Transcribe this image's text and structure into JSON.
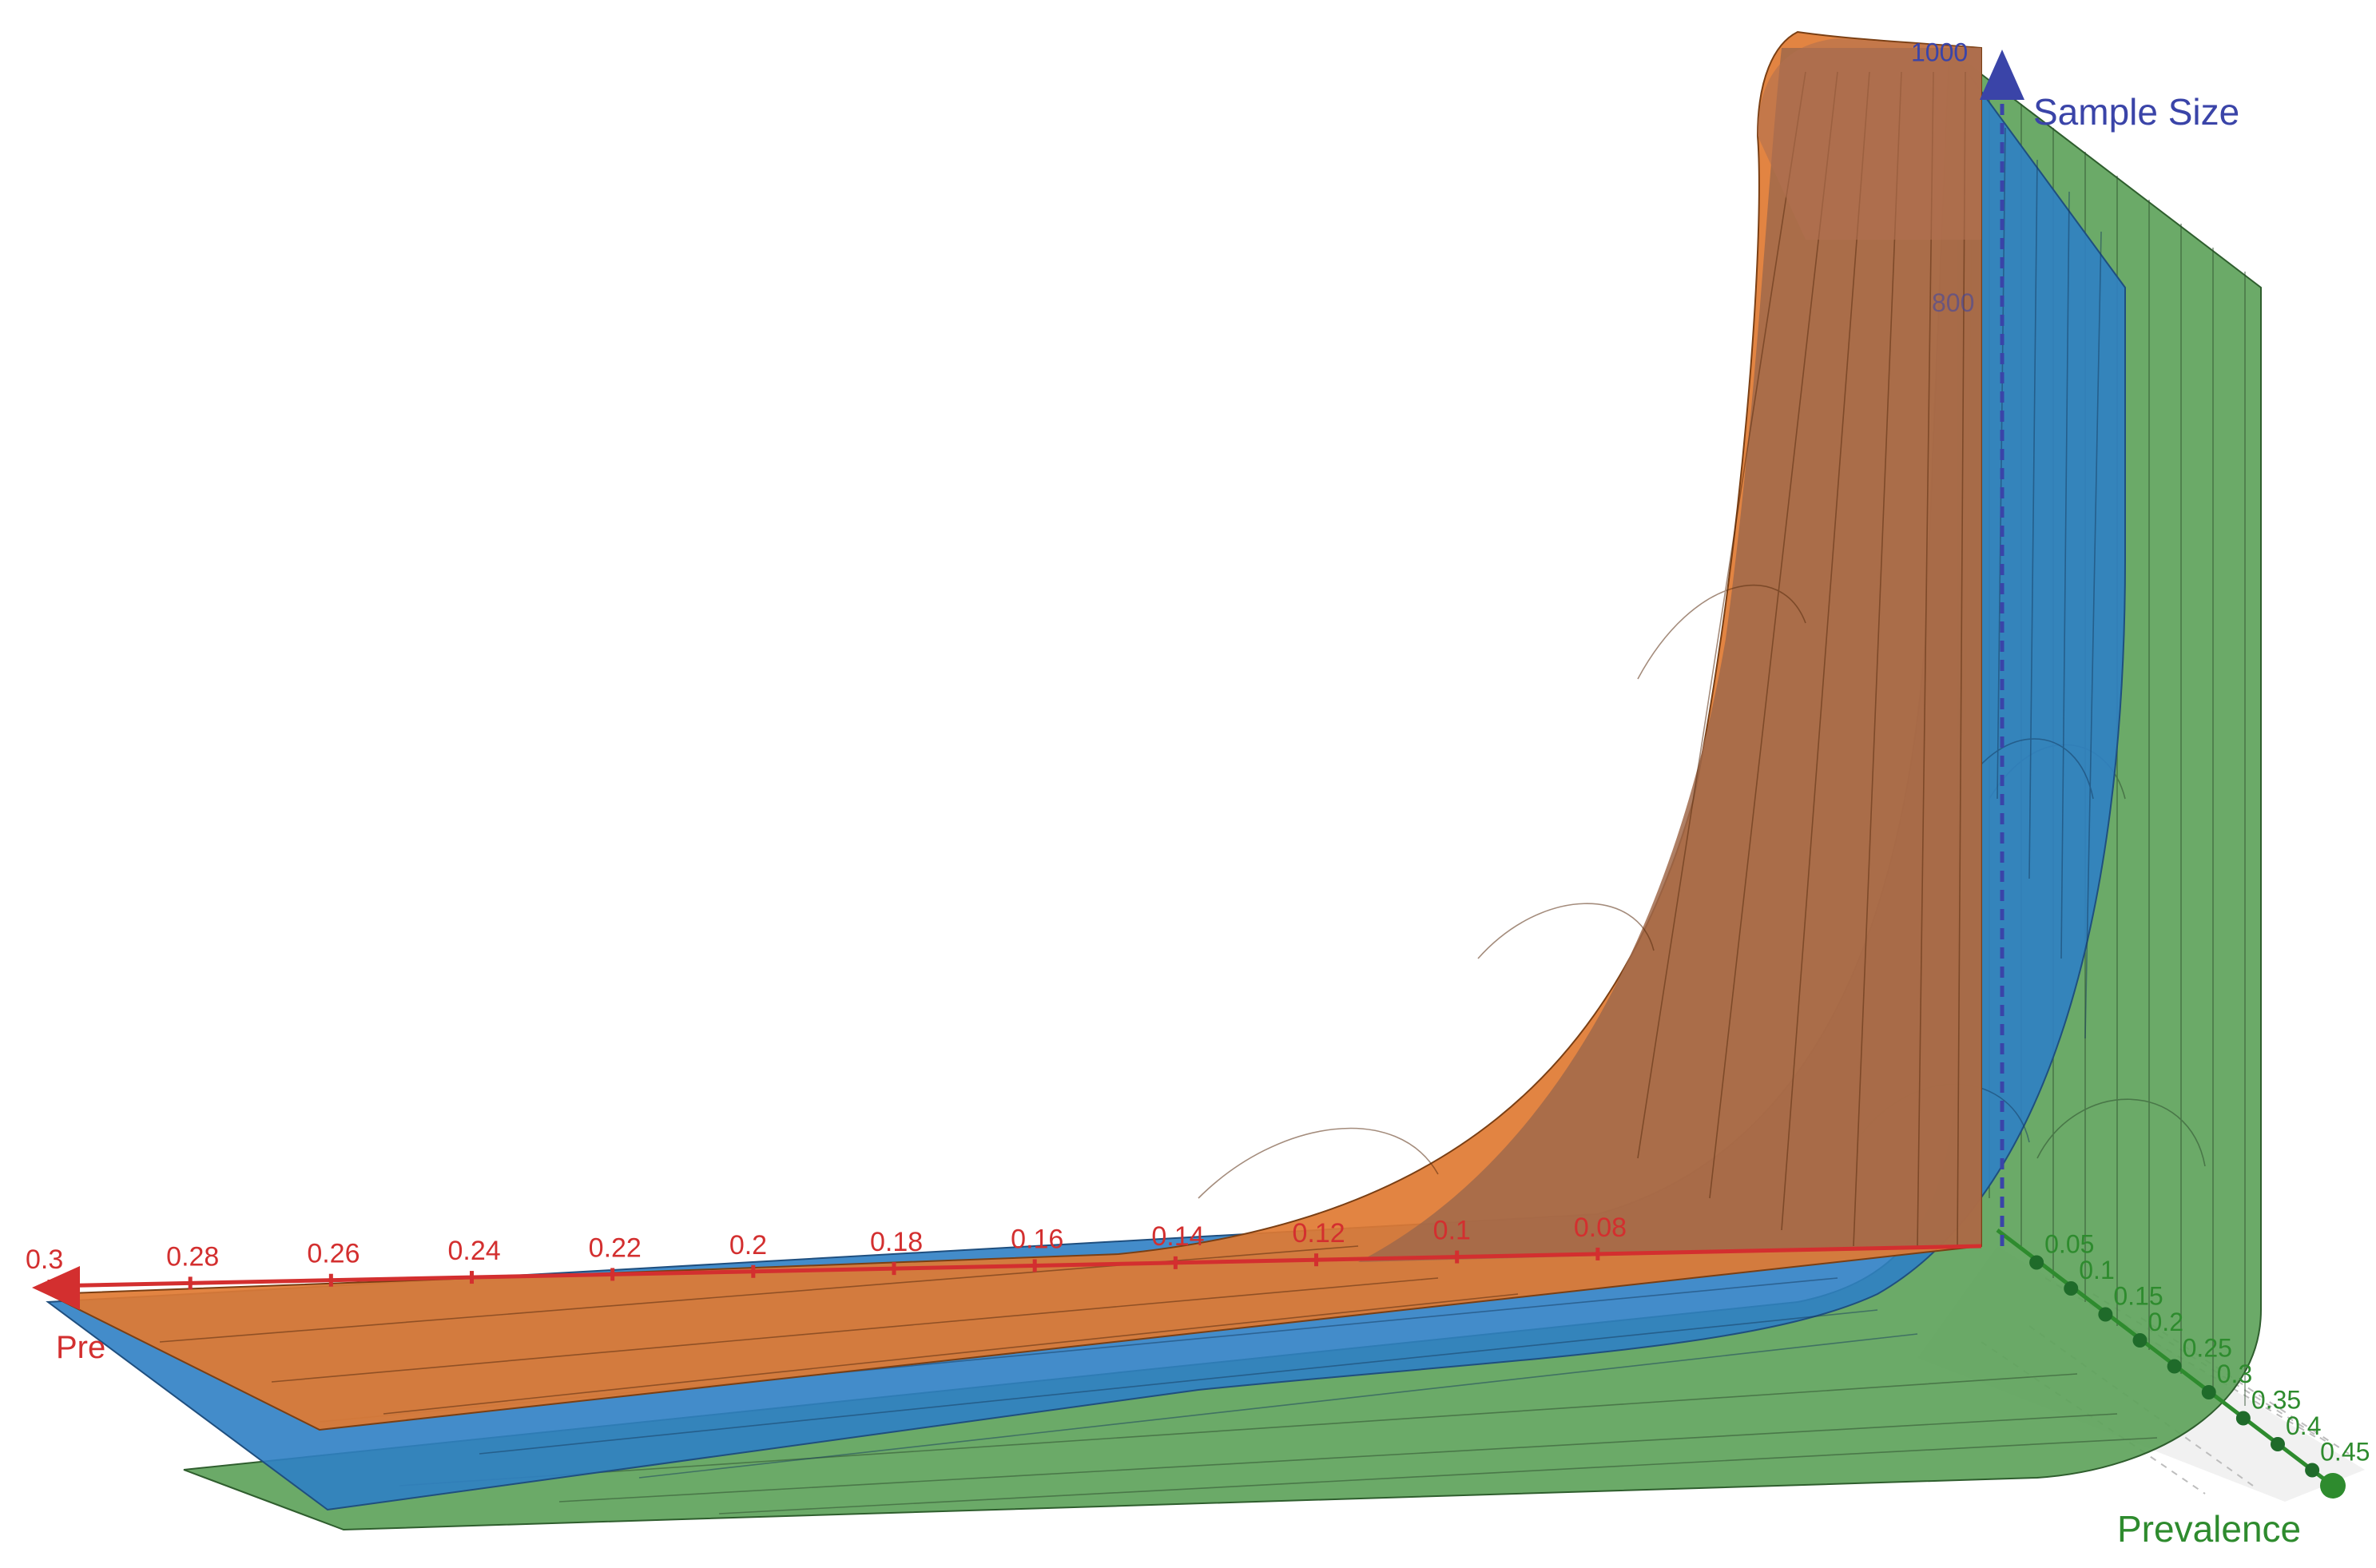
{
  "chart_data": {
    "type": "surface-3d",
    "axes": {
      "x": {
        "label": "Pre",
        "color": "#d32f2f",
        "ticks": [
          "0.3",
          "0.28",
          "0.26",
          "0.24",
          "0.22",
          "0.2",
          "0.18",
          "0.16",
          "0.14",
          "0.12",
          "0.1",
          "0.08"
        ]
      },
      "y": {
        "label": "Prevalence",
        "color": "#2e8b2e",
        "ticks": [
          "0.05",
          "0.1",
          "0.15",
          "0.2",
          "0.25",
          "0.3",
          "0.35",
          "0.4",
          "0.45"
        ]
      },
      "z": {
        "label": "Sample Size",
        "color": "#3a44a8",
        "ticks": [
          "1000",
          "800"
        ],
        "range": [
          0,
          1000
        ]
      }
    },
    "series": [
      {
        "color": "#e07a32"
      },
      {
        "color": "#2f7fc4"
      },
      {
        "color": "#5ea35b"
      }
    ]
  }
}
